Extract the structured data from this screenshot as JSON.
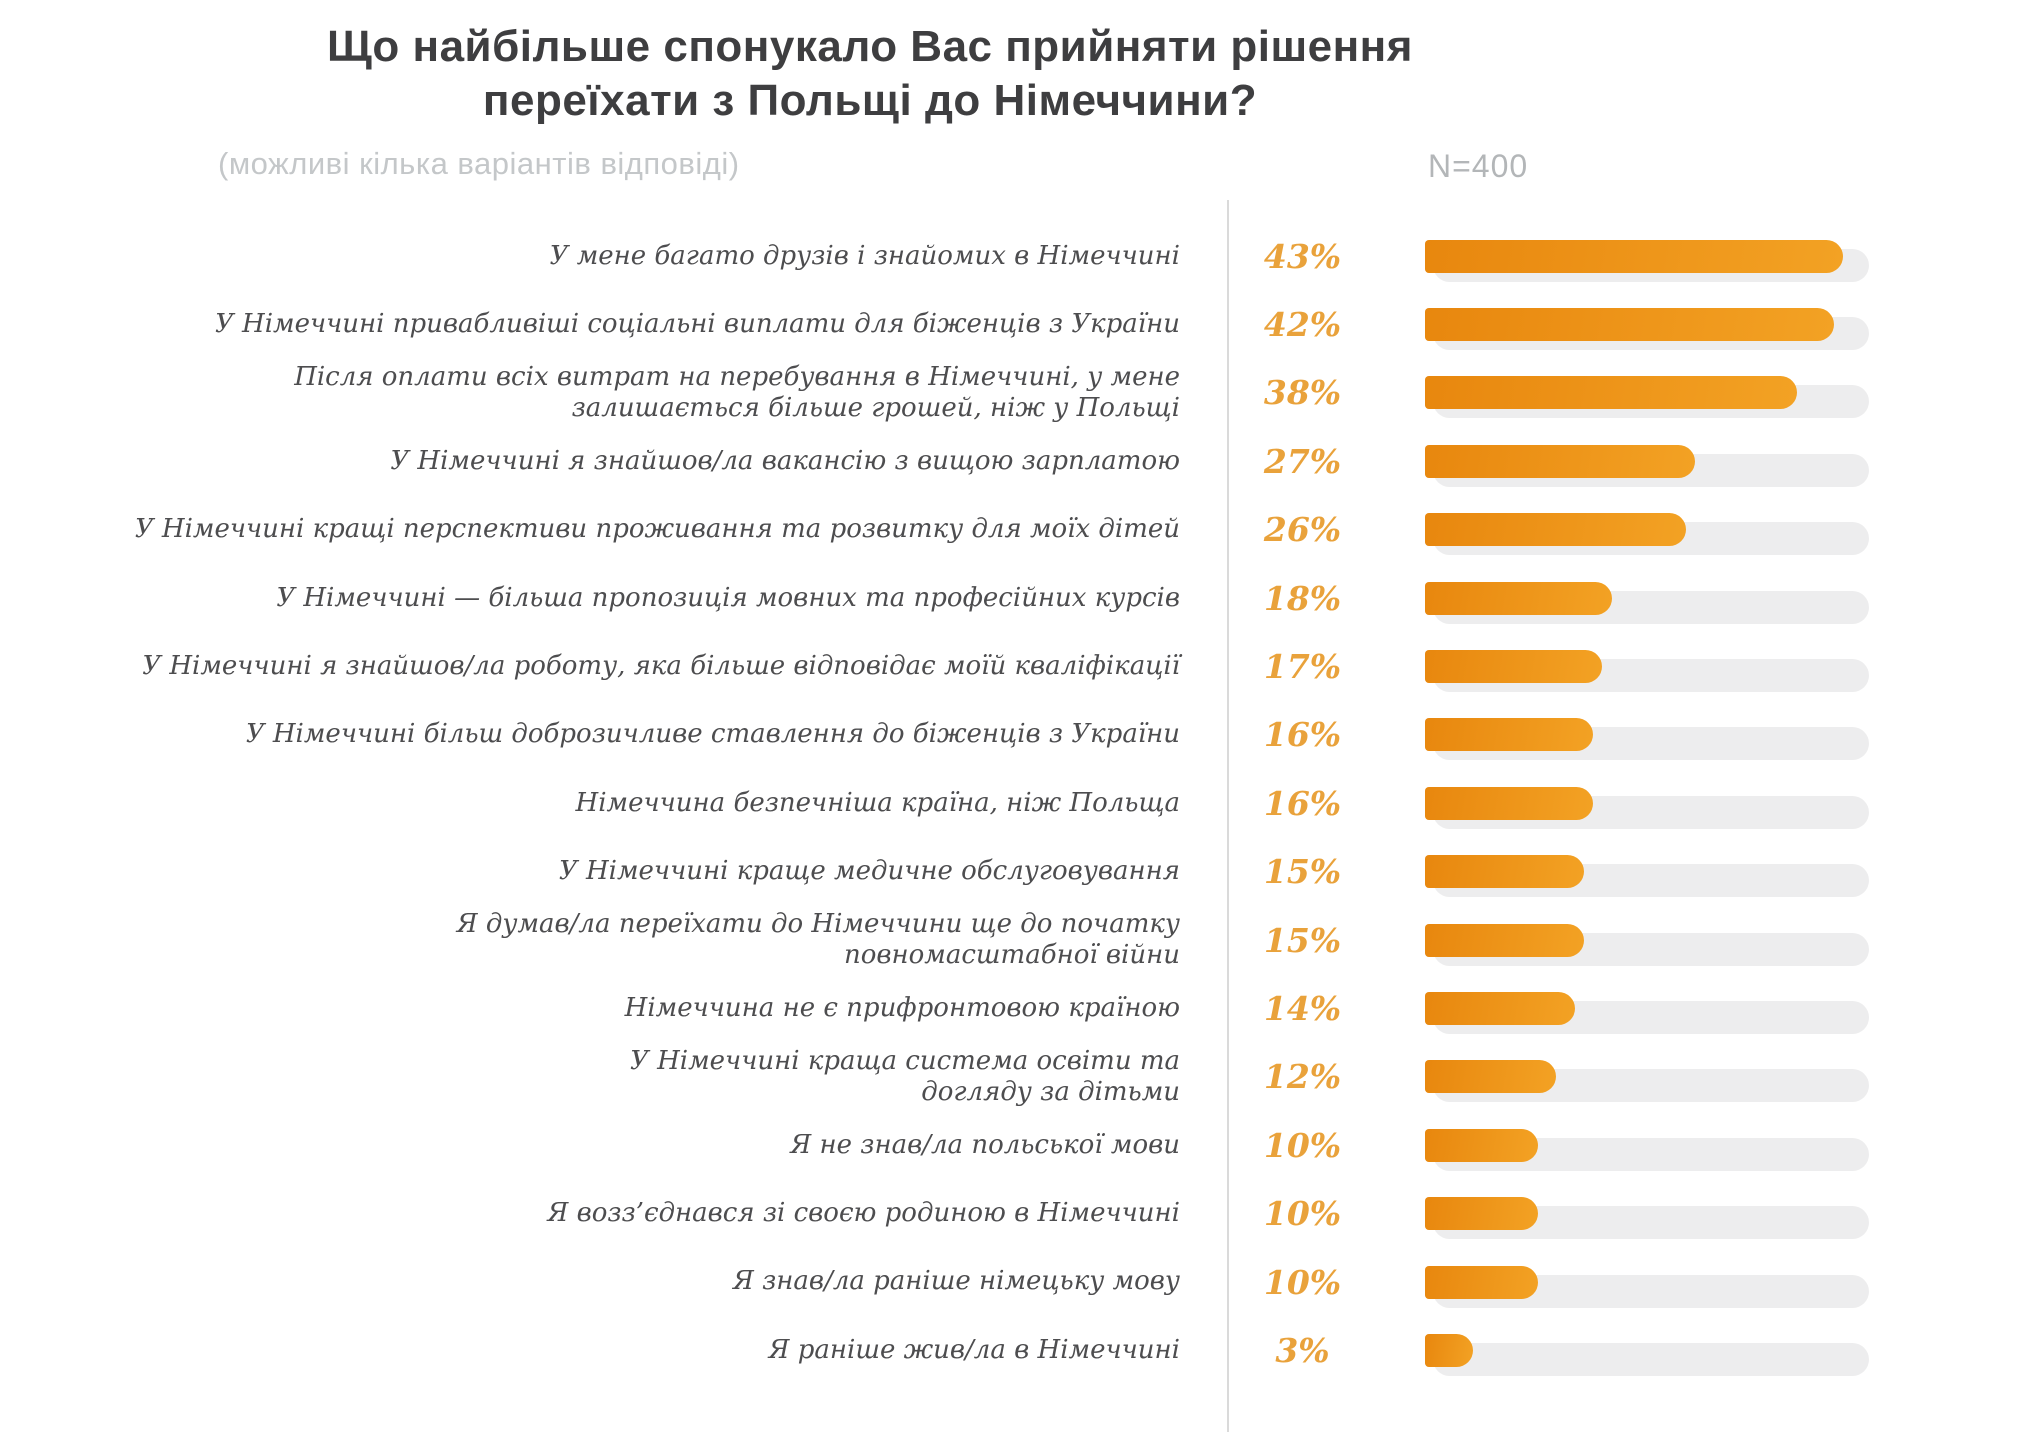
{
  "header": {
    "title_lines": [
      "Що найбільше спонукало Вас прийняти рішення",
      "переїхати з Польщі до Німеччини?"
    ],
    "subtitle": "(можливі кілька варіантів відповіді)",
    "sample_size": "N=400"
  },
  "colors": {
    "title_text": "#3e3e40",
    "label_text": "#4d4d4f",
    "muted_text": "#c4c7c9",
    "muted_text2": "#b3b6b8",
    "percent_text": "#e9a23b",
    "bar_start": "#e8870e",
    "bar_end": "#f3a224",
    "track": "#ededee",
    "divider": "#dadada"
  },
  "chart_data": {
    "type": "bar",
    "orientation": "horizontal",
    "title": "Що найбільше спонукало Вас прийняти рішення переїхати з Польщі до Німеччини?",
    "subtitle": "(можливі кілька варіантів відповіді)",
    "sample_size_note": "N=400",
    "xlim": [
      0,
      45
    ],
    "grid": false,
    "legend": false,
    "value_label_position": "left-of-bar",
    "categories": [
      "У мене багато друзів і знайомих в Німеччині",
      "У Німеччині привабливіші соціальні виплати для біженців з України",
      "Після оплати всіх витрат на перебування в Німеччині, у мене\nзалишається більше грошей, ніж у Польщі",
      "У Німеччині я знайшов/ла вакансію з вищою зарплатою",
      "У Німеччині кращі перспективи проживання та розвитку для моїх дітей",
      "У Німеччині — більша пропозиція мовних та професійних курсів",
      "У Німеччині я знайшов/ла роботу, яка більше відповідає моїй кваліфікації",
      "У Німеччині більш доброзичливе ставлення до біженців з України",
      "Німеччина безпечніша країна, ніж Польща",
      "У Німеччині краще медичне обслуговування",
      "Я думав/ла переїхати до Німеччини ще до початку\nповномасштабної війни",
      "Німеччина не є прифронтовою країною",
      "У Німеччині краща система освіти та\nдогляду за дітьми",
      "Я не знав/ла польської мови",
      "Я возз’єднався зі своєю родиною в Німеччині",
      "Я знав/ла раніше німецьку мову",
      "Я раніше жив/ла в Німеччині"
    ],
    "values": [
      43,
      42,
      38,
      27,
      26,
      18,
      17,
      16,
      16,
      15,
      15,
      14,
      12,
      10,
      10,
      10,
      3
    ],
    "value_labels": [
      "43%",
      "42%",
      "38%",
      "27%",
      "26%",
      "18%",
      "17%",
      "16%",
      "16%",
      "15%",
      "15%",
      "14%",
      "12%",
      "10%",
      "10%",
      "10%",
      "3%"
    ]
  }
}
